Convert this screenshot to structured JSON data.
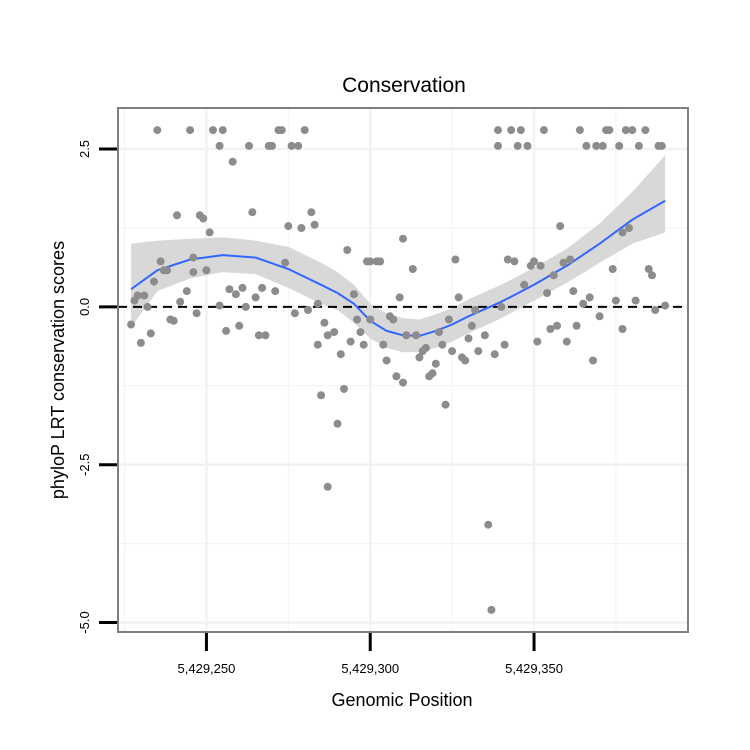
{
  "chart_data": {
    "type": "scatter",
    "title": "Conservation",
    "xlabel": "Genomic Position",
    "ylabel": "phyloP LRT conservation scores",
    "xlim": [
      5429223,
      5429397
    ],
    "ylim": [
      -5.15,
      3.15
    ],
    "x_ticks": [
      5429250,
      5429300,
      5429350
    ],
    "x_tick_labels": [
      "5,429,250",
      "5,429,300",
      "5,429,350"
    ],
    "y_ticks": [
      -5.0,
      -2.5,
      0.0,
      2.5
    ],
    "y_tick_labels": [
      "-5.0",
      "-2.5",
      "0.0",
      "2.5"
    ],
    "grid": true,
    "reference_line": {
      "y": 0,
      "style": "dashed"
    },
    "colors": {
      "points": "#8c8c8c",
      "smooth_line": "#3366ff",
      "confidence_band": "#d6d6d6",
      "panel_border": "#7f7f7f",
      "grid": "#f2f2f2",
      "reference_line": "#000000"
    },
    "points": [
      {
        "x": 5429227,
        "y": -0.28
      },
      {
        "x": 5429228,
        "y": 0.1
      },
      {
        "x": 5429229,
        "y": 0.18
      },
      {
        "x": 5429230,
        "y": -0.57
      },
      {
        "x": 5429231,
        "y": 0.18
      },
      {
        "x": 5429232,
        "y": 0.0
      },
      {
        "x": 5429233,
        "y": -0.42
      },
      {
        "x": 5429234,
        "y": 0.4
      },
      {
        "x": 5429235,
        "y": 2.8
      },
      {
        "x": 5429236,
        "y": 0.72
      },
      {
        "x": 5429237,
        "y": 0.58
      },
      {
        "x": 5429238,
        "y": 0.58
      },
      {
        "x": 5429239,
        "y": -0.2
      },
      {
        "x": 5429240,
        "y": -0.22
      },
      {
        "x": 5429241,
        "y": 1.45
      },
      {
        "x": 5429242,
        "y": 0.08
      },
      {
        "x": 5429244,
        "y": 0.25
      },
      {
        "x": 5429245,
        "y": 2.8
      },
      {
        "x": 5429246,
        "y": 0.78
      },
      {
        "x": 5429246,
        "y": 0.55
      },
      {
        "x": 5429247,
        "y": -0.1
      },
      {
        "x": 5429248,
        "y": 1.45
      },
      {
        "x": 5429249,
        "y": 1.4
      },
      {
        "x": 5429250,
        "y": 0.58
      },
      {
        "x": 5429251,
        "y": 1.18
      },
      {
        "x": 5429252,
        "y": 2.8
      },
      {
        "x": 5429254,
        "y": 0.02
      },
      {
        "x": 5429254,
        "y": 2.55
      },
      {
        "x": 5429255,
        "y": 2.8
      },
      {
        "x": 5429256,
        "y": -0.38
      },
      {
        "x": 5429257,
        "y": 0.28
      },
      {
        "x": 5429258,
        "y": 2.3
      },
      {
        "x": 5429259,
        "y": 0.2
      },
      {
        "x": 5429260,
        "y": -0.3
      },
      {
        "x": 5429261,
        "y": 0.3
      },
      {
        "x": 5429262,
        "y": 0.0
      },
      {
        "x": 5429263,
        "y": 2.55
      },
      {
        "x": 5429264,
        "y": 1.5
      },
      {
        "x": 5429265,
        "y": 0.15
      },
      {
        "x": 5429266,
        "y": -0.45
      },
      {
        "x": 5429267,
        "y": 0.3
      },
      {
        "x": 5429268,
        "y": -0.45
      },
      {
        "x": 5429269,
        "y": 2.55
      },
      {
        "x": 5429270,
        "y": 2.55
      },
      {
        "x": 5429271,
        "y": 0.25
      },
      {
        "x": 5429272,
        "y": 2.8
      },
      {
        "x": 5429273,
        "y": 2.8
      },
      {
        "x": 5429274,
        "y": 0.7
      },
      {
        "x": 5429275,
        "y": 1.28
      },
      {
        "x": 5429276,
        "y": 2.55
      },
      {
        "x": 5429277,
        "y": -0.1
      },
      {
        "x": 5429278,
        "y": 2.55
      },
      {
        "x": 5429279,
        "y": 1.25
      },
      {
        "x": 5429280,
        "y": 2.8
      },
      {
        "x": 5429281,
        "y": -0.05
      },
      {
        "x": 5429282,
        "y": 1.5
      },
      {
        "x": 5429283,
        "y": 1.3
      },
      {
        "x": 5429284,
        "y": 0.05
      },
      {
        "x": 5429284,
        "y": -0.6
      },
      {
        "x": 5429285,
        "y": -1.4
      },
      {
        "x": 5429286,
        "y": -0.25
      },
      {
        "x": 5429287,
        "y": -0.45
      },
      {
        "x": 5429287,
        "y": -2.85
      },
      {
        "x": 5429289,
        "y": -0.4
      },
      {
        "x": 5429290,
        "y": -1.85
      },
      {
        "x": 5429291,
        "y": -0.75
      },
      {
        "x": 5429292,
        "y": -1.3
      },
      {
        "x": 5429293,
        "y": 0.9
      },
      {
        "x": 5429294,
        "y": -0.55
      },
      {
        "x": 5429295,
        "y": 0.2
      },
      {
        "x": 5429296,
        "y": -0.2
      },
      {
        "x": 5429297,
        "y": -0.4
      },
      {
        "x": 5429298,
        "y": -0.6
      },
      {
        "x": 5429299,
        "y": 0.72
      },
      {
        "x": 5429300,
        "y": 0.72
      },
      {
        "x": 5429300,
        "y": -0.2
      },
      {
        "x": 5429302,
        "y": 0.72
      },
      {
        "x": 5429303,
        "y": 0.72
      },
      {
        "x": 5429304,
        "y": -0.6
      },
      {
        "x": 5429305,
        "y": -0.85
      },
      {
        "x": 5429306,
        "y": -0.15
      },
      {
        "x": 5429307,
        "y": -0.2
      },
      {
        "x": 5429308,
        "y": -1.1
      },
      {
        "x": 5429309,
        "y": 0.15
      },
      {
        "x": 5429310,
        "y": -1.2
      },
      {
        "x": 5429310,
        "y": 1.08
      },
      {
        "x": 5429311,
        "y": -0.45
      },
      {
        "x": 5429313,
        "y": 0.6
      },
      {
        "x": 5429314,
        "y": -0.45
      },
      {
        "x": 5429315,
        "y": -0.8
      },
      {
        "x": 5429316,
        "y": -0.7
      },
      {
        "x": 5429317,
        "y": -0.65
      },
      {
        "x": 5429318,
        "y": -1.1
      },
      {
        "x": 5429319,
        "y": -1.05
      },
      {
        "x": 5429320,
        "y": -0.9
      },
      {
        "x": 5429321,
        "y": -0.4
      },
      {
        "x": 5429322,
        "y": -0.6
      },
      {
        "x": 5429323,
        "y": -1.55
      },
      {
        "x": 5429324,
        "y": -0.2
      },
      {
        "x": 5429325,
        "y": -0.7
      },
      {
        "x": 5429326,
        "y": 0.75
      },
      {
        "x": 5429327,
        "y": 0.15
      },
      {
        "x": 5429328,
        "y": -0.8
      },
      {
        "x": 5429329,
        "y": -0.85
      },
      {
        "x": 5429330,
        "y": -0.5
      },
      {
        "x": 5429331,
        "y": -0.3
      },
      {
        "x": 5429332,
        "y": -0.05
      },
      {
        "x": 5429333,
        "y": -0.7
      },
      {
        "x": 5429335,
        "y": -0.45
      },
      {
        "x": 5429336,
        "y": -3.45
      },
      {
        "x": 5429337,
        "y": -4.8
      },
      {
        "x": 5429338,
        "y": -0.75
      },
      {
        "x": 5429339,
        "y": 2.55
      },
      {
        "x": 5429339,
        "y": 2.8
      },
      {
        "x": 5429340,
        "y": 0.0
      },
      {
        "x": 5429341,
        "y": -0.6
      },
      {
        "x": 5429342,
        "y": 0.75
      },
      {
        "x": 5429343,
        "y": 2.8
      },
      {
        "x": 5429344,
        "y": 0.72
      },
      {
        "x": 5429345,
        "y": 2.55
      },
      {
        "x": 5429346,
        "y": 2.8
      },
      {
        "x": 5429347,
        "y": 0.35
      },
      {
        "x": 5429348,
        "y": 2.55
      },
      {
        "x": 5429349,
        "y": 0.65
      },
      {
        "x": 5429350,
        "y": 0.72
      },
      {
        "x": 5429351,
        "y": -0.55
      },
      {
        "x": 5429352,
        "y": 0.65
      },
      {
        "x": 5429353,
        "y": 2.8
      },
      {
        "x": 5429354,
        "y": 0.22
      },
      {
        "x": 5429355,
        "y": -0.35
      },
      {
        "x": 5429356,
        "y": 0.5
      },
      {
        "x": 5429357,
        "y": -0.3
      },
      {
        "x": 5429358,
        "y": 1.28
      },
      {
        "x": 5429359,
        "y": 0.7
      },
      {
        "x": 5429360,
        "y": -0.55
      },
      {
        "x": 5429361,
        "y": 0.75
      },
      {
        "x": 5429362,
        "y": 0.25
      },
      {
        "x": 5429363,
        "y": -0.3
      },
      {
        "x": 5429364,
        "y": 2.8
      },
      {
        "x": 5429365,
        "y": 0.05
      },
      {
        "x": 5429366,
        "y": 2.55
      },
      {
        "x": 5429367,
        "y": 0.15
      },
      {
        "x": 5429368,
        "y": -0.85
      },
      {
        "x": 5429369,
        "y": 2.55
      },
      {
        "x": 5429370,
        "y": -0.15
      },
      {
        "x": 5429371,
        "y": 2.55
      },
      {
        "x": 5429372,
        "y": 2.8
      },
      {
        "x": 5429373,
        "y": 2.8
      },
      {
        "x": 5429374,
        "y": 0.6
      },
      {
        "x": 5429375,
        "y": 0.1
      },
      {
        "x": 5429376,
        "y": 2.55
      },
      {
        "x": 5429377,
        "y": -0.35
      },
      {
        "x": 5429377,
        "y": 1.18
      },
      {
        "x": 5429378,
        "y": 2.8
      },
      {
        "x": 5429379,
        "y": 1.25
      },
      {
        "x": 5429380,
        "y": 2.8
      },
      {
        "x": 5429381,
        "y": 0.1
      },
      {
        "x": 5429382,
        "y": 2.55
      },
      {
        "x": 5429384,
        "y": 2.8
      },
      {
        "x": 5429385,
        "y": 0.6
      },
      {
        "x": 5429386,
        "y": 0.5
      },
      {
        "x": 5429387,
        "y": -0.05
      },
      {
        "x": 5429388,
        "y": 2.55
      },
      {
        "x": 5429389,
        "y": 2.55
      },
      {
        "x": 5429390,
        "y": 0.02
      }
    ],
    "smooth_curve": [
      {
        "x": 5429227,
        "y": 0.28,
        "lo": -0.32,
        "hi": 1.0
      },
      {
        "x": 5429235,
        "y": 0.58,
        "lo": 0.25,
        "hi": 1.05
      },
      {
        "x": 5429245,
        "y": 0.75,
        "lo": 0.45,
        "hi": 1.08
      },
      {
        "x": 5429255,
        "y": 0.82,
        "lo": 0.55,
        "hi": 1.1
      },
      {
        "x": 5429265,
        "y": 0.78,
        "lo": 0.52,
        "hi": 1.05
      },
      {
        "x": 5429275,
        "y": 0.6,
        "lo": 0.3,
        "hi": 0.95
      },
      {
        "x": 5429285,
        "y": 0.35,
        "lo": 0.05,
        "hi": 0.7
      },
      {
        "x": 5429290,
        "y": 0.22,
        "lo": -0.05,
        "hi": 0.55
      },
      {
        "x": 5429295,
        "y": 0.05,
        "lo": -0.25,
        "hi": 0.35
      },
      {
        "x": 5429300,
        "y": -0.22,
        "lo": -0.5,
        "hi": 0.05
      },
      {
        "x": 5429305,
        "y": -0.38,
        "lo": -0.65,
        "hi": -0.1
      },
      {
        "x": 5429310,
        "y": -0.45,
        "lo": -0.72,
        "hi": -0.18
      },
      {
        "x": 5429315,
        "y": -0.46,
        "lo": -0.72,
        "hi": -0.2
      },
      {
        "x": 5429320,
        "y": -0.38,
        "lo": -0.65,
        "hi": -0.12
      },
      {
        "x": 5429325,
        "y": -0.28,
        "lo": -0.55,
        "hi": -0.02
      },
      {
        "x": 5429330,
        "y": -0.15,
        "lo": -0.42,
        "hi": 0.12
      },
      {
        "x": 5429340,
        "y": 0.08,
        "lo": -0.18,
        "hi": 0.35
      },
      {
        "x": 5429350,
        "y": 0.35,
        "lo": 0.1,
        "hi": 0.62
      },
      {
        "x": 5429360,
        "y": 0.65,
        "lo": 0.38,
        "hi": 0.92
      },
      {
        "x": 5429370,
        "y": 1.0,
        "lo": 0.7,
        "hi": 1.32
      },
      {
        "x": 5429380,
        "y": 1.38,
        "lo": 1.0,
        "hi": 1.82
      },
      {
        "x": 5429390,
        "y": 1.68,
        "lo": 1.18,
        "hi": 2.4
      }
    ]
  }
}
